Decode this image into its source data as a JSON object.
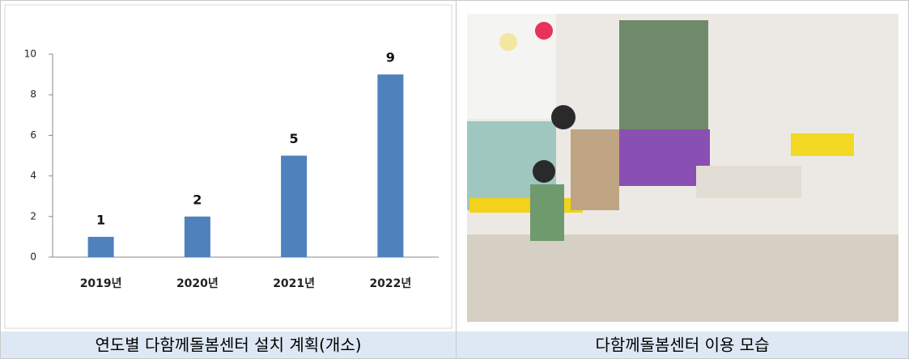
{
  "chart_data": {
    "type": "bar",
    "title": "연도별 다함께돌봄센터 설치 계획(개소)",
    "categories": [
      "2019년",
      "2020년",
      "2021년",
      "2022년"
    ],
    "values": [
      1,
      2,
      5,
      9
    ],
    "color": "#4f81bd",
    "ylim": [
      0,
      10
    ],
    "yticks": [
      0,
      2,
      4,
      6,
      8,
      10
    ],
    "grid": false
  },
  "photo": {
    "caption": "다함께돌봄센터 이용 모습"
  }
}
